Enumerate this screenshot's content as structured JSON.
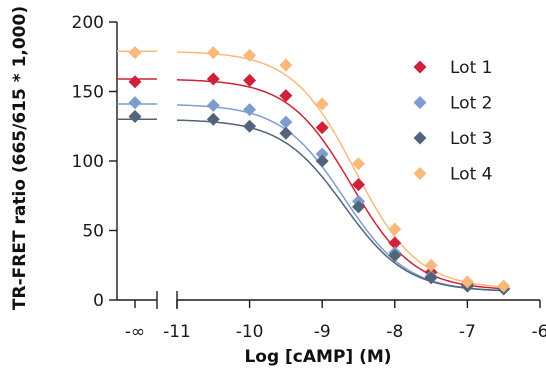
{
  "chart_data": {
    "type": "scatter",
    "xlabel": "Log [cAMP] (M)",
    "ylabel": "TR-FRET ratio (665/615 * 1,000)",
    "x_break": {
      "label": "-∞",
      "x": -12
    },
    "xlim": [
      -11,
      -6
    ],
    "xticks": [
      -11,
      -10,
      -9,
      -8,
      -7,
      -6
    ],
    "ylim": [
      0,
      200
    ],
    "yticks": [
      0,
      50,
      100,
      150,
      200
    ],
    "grid": false,
    "legend_position": "right",
    "series": [
      {
        "name": "Lot 1",
        "color": "#d0213a",
        "points": [
          [
            -12,
            157
          ],
          [
            -10.5,
            159
          ],
          [
            -10,
            158
          ],
          [
            -9.5,
            147
          ],
          [
            -9,
            124
          ],
          [
            -8.5,
            83
          ],
          [
            -8,
            41
          ],
          [
            -7.5,
            20
          ],
          [
            -7,
            11
          ],
          [
            -6.5,
            8
          ]
        ],
        "fit": {
          "top": 159,
          "bottom": 7,
          "log_ec50": -8.6,
          "hill": 1.0
        }
      },
      {
        "name": "Lot 2",
        "color": "#7e9ccf",
        "points": [
          [
            -12,
            142
          ],
          [
            -10.5,
            140
          ],
          [
            -10,
            137
          ],
          [
            -9.5,
            128
          ],
          [
            -9,
            105
          ],
          [
            -8.5,
            71
          ],
          [
            -8,
            34
          ],
          [
            -7.5,
            17
          ],
          [
            -7,
            10
          ],
          [
            -6.5,
            8
          ]
        ],
        "fit": {
          "top": 141,
          "bottom": 6,
          "log_ec50": -8.7,
          "hill": 1.0
        }
      },
      {
        "name": "Lot 3",
        "color": "#526477",
        "points": [
          [
            -12,
            132
          ],
          [
            -10.5,
            130
          ],
          [
            -10,
            125
          ],
          [
            -9.5,
            120
          ],
          [
            -9,
            100
          ],
          [
            -8.5,
            67
          ],
          [
            -8,
            32
          ],
          [
            -7.5,
            16
          ],
          [
            -7,
            10
          ],
          [
            -6.5,
            8
          ]
        ],
        "fit": {
          "top": 130,
          "bottom": 6,
          "log_ec50": -8.7,
          "hill": 1.0
        }
      },
      {
        "name": "Lot 4",
        "color": "#f9b97a",
        "points": [
          [
            -12,
            178
          ],
          [
            -10.5,
            178
          ],
          [
            -10,
            176
          ],
          [
            -9.5,
            169
          ],
          [
            -9,
            141
          ],
          [
            -8.5,
            98
          ],
          [
            -8,
            51
          ],
          [
            -7.5,
            25
          ],
          [
            -7,
            13
          ],
          [
            -6.5,
            10
          ]
        ],
        "fit": {
          "top": 179,
          "bottom": 8,
          "log_ec50": -8.55,
          "hill": 1.0
        }
      }
    ]
  }
}
